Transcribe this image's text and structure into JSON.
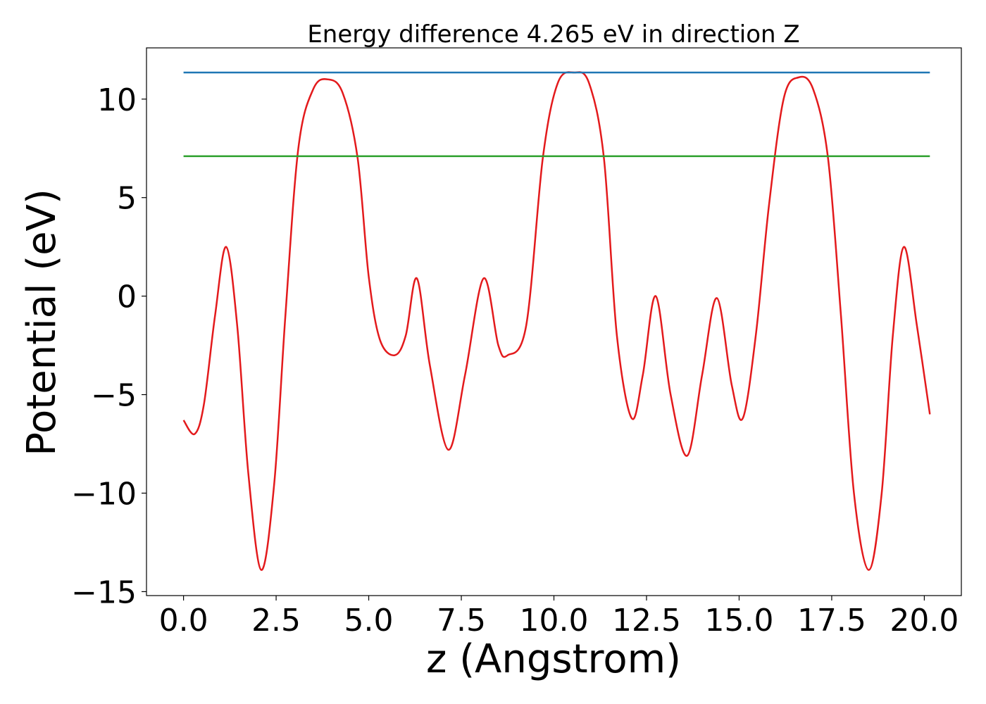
{
  "chart_data": {
    "type": "line",
    "title": "Energy difference 4.265 eV in direction Z",
    "xlabel": "z (Angstrom)",
    "ylabel": "Potential (eV)",
    "xlim": [
      -1.0,
      21.0
    ],
    "ylim": [
      -15.2,
      12.6
    ],
    "xticks": [
      0.0,
      2.5,
      5.0,
      7.5,
      10.0,
      12.5,
      15.0,
      17.5,
      20.0
    ],
    "xtick_labels": [
      "0.0",
      "2.5",
      "5.0",
      "7.5",
      "10.0",
      "12.5",
      "15.0",
      "17.5",
      "20.0"
    ],
    "yticks": [
      10,
      5,
      0,
      -5,
      -10,
      -15
    ],
    "ytick_labels": [
      "10",
      "5",
      "0",
      "−5",
      "−10",
      "−15"
    ],
    "grid": false,
    "series": [
      {
        "color": "#e31a1c",
        "points": [
          [
            0.0,
            -6.3
          ],
          [
            0.3,
            -7.0
          ],
          [
            0.55,
            -5.5
          ],
          [
            0.85,
            -1.0
          ],
          [
            1.15,
            2.5
          ],
          [
            1.45,
            -1.5
          ],
          [
            1.75,
            -9.0
          ],
          [
            2.1,
            -13.9
          ],
          [
            2.45,
            -9.5
          ],
          [
            2.75,
            -1.0
          ],
          [
            3.1,
            7.5
          ],
          [
            3.5,
            10.5
          ],
          [
            3.9,
            11.0
          ],
          [
            4.3,
            10.3
          ],
          [
            4.7,
            7.0
          ],
          [
            5.0,
            1.0
          ],
          [
            5.3,
            -2.2
          ],
          [
            5.7,
            -3.0
          ],
          [
            6.0,
            -2.0
          ],
          [
            6.3,
            0.9
          ],
          [
            6.65,
            -3.5
          ],
          [
            7.15,
            -7.8
          ],
          [
            7.6,
            -4.0
          ],
          [
            8.1,
            0.9
          ],
          [
            8.5,
            -2.5
          ],
          [
            8.75,
            -3.0
          ],
          [
            9.25,
            -1.5
          ],
          [
            9.7,
            7.0
          ],
          [
            10.1,
            10.8
          ],
          [
            10.55,
            11.35
          ],
          [
            10.95,
            10.8
          ],
          [
            11.35,
            7.0
          ],
          [
            11.7,
            -2.0
          ],
          [
            12.1,
            -6.2
          ],
          [
            12.4,
            -4.0
          ],
          [
            12.75,
            0.0
          ],
          [
            13.15,
            -5.0
          ],
          [
            13.6,
            -8.1
          ],
          [
            14.0,
            -4.0
          ],
          [
            14.4,
            -0.1
          ],
          [
            14.8,
            -4.5
          ],
          [
            15.1,
            -6.2
          ],
          [
            15.45,
            -2.0
          ],
          [
            15.8,
            4.5
          ],
          [
            16.2,
            10.0
          ],
          [
            16.6,
            11.1
          ],
          [
            17.0,
            10.5
          ],
          [
            17.4,
            7.0
          ],
          [
            17.75,
            -1.0
          ],
          [
            18.1,
            -10.0
          ],
          [
            18.5,
            -13.9
          ],
          [
            18.85,
            -10.0
          ],
          [
            19.15,
            -2.0
          ],
          [
            19.45,
            2.5
          ],
          [
            19.8,
            -1.5
          ],
          [
            20.15,
            -6.0
          ]
        ]
      },
      {
        "color": "#1f77b4",
        "points": [
          [
            0.0,
            11.35
          ],
          [
            20.15,
            11.35
          ]
        ]
      },
      {
        "color": "#2ca02c",
        "points": [
          [
            0.0,
            7.1
          ],
          [
            20.15,
            7.1
          ]
        ]
      }
    ]
  }
}
